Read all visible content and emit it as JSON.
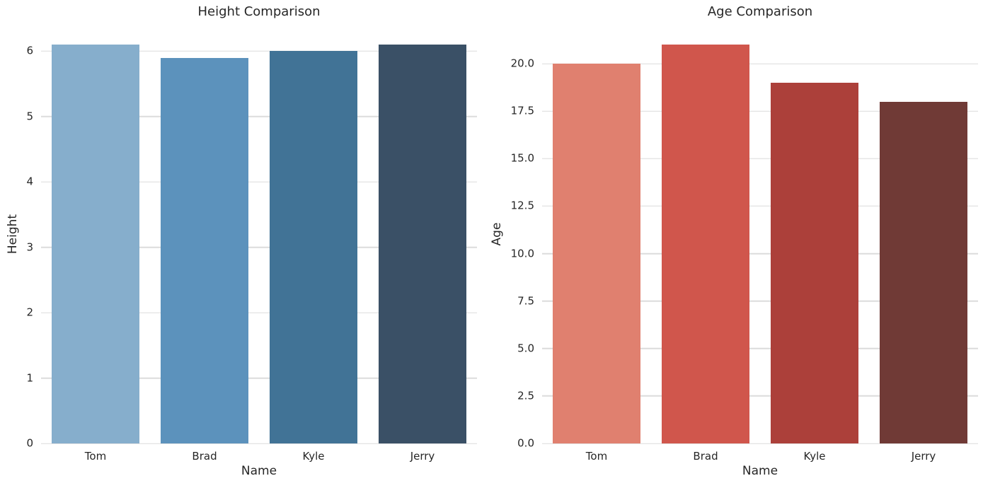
{
  "figure": {
    "background": "#ffffff",
    "text_color": "#262626",
    "grid_color": "#dcdcdc"
  },
  "chart_data": [
    {
      "type": "bar",
      "title": "Height Comparison",
      "xlabel": "Name",
      "ylabel": "Height",
      "categories": [
        "Tom",
        "Brad",
        "Kyle",
        "Jerry"
      ],
      "values": [
        6.1,
        5.9,
        6.0,
        6.1
      ],
      "bar_colors": [
        "#86AECC",
        "#5C92BC",
        "#417396",
        "#3A5066"
      ],
      "ylim": [
        0,
        6.405
      ],
      "yticks": [
        0,
        1,
        2,
        3,
        4,
        5,
        6
      ],
      "ytick_labels": [
        "0",
        "1",
        "2",
        "3",
        "4",
        "5",
        "6"
      ],
      "grid": "horizontal",
      "legend": "none"
    },
    {
      "type": "bar",
      "title": "Age Comparison",
      "xlabel": "Name",
      "ylabel": "Age",
      "categories": [
        "Tom",
        "Brad",
        "Kyle",
        "Jerry"
      ],
      "values": [
        20,
        21,
        19,
        18
      ],
      "bar_colors": [
        "#E0806F",
        "#D0564C",
        "#AC403A",
        "#703A36"
      ],
      "ylim": [
        0,
        22.05
      ],
      "yticks": [
        0,
        2.5,
        5,
        7.5,
        10,
        12.5,
        15,
        17.5,
        20
      ],
      "ytick_labels": [
        "0.0",
        "2.5",
        "5.0",
        "7.5",
        "10.0",
        "12.5",
        "15.0",
        "17.5",
        "20.0"
      ],
      "grid": "horizontal",
      "legend": "none"
    }
  ]
}
